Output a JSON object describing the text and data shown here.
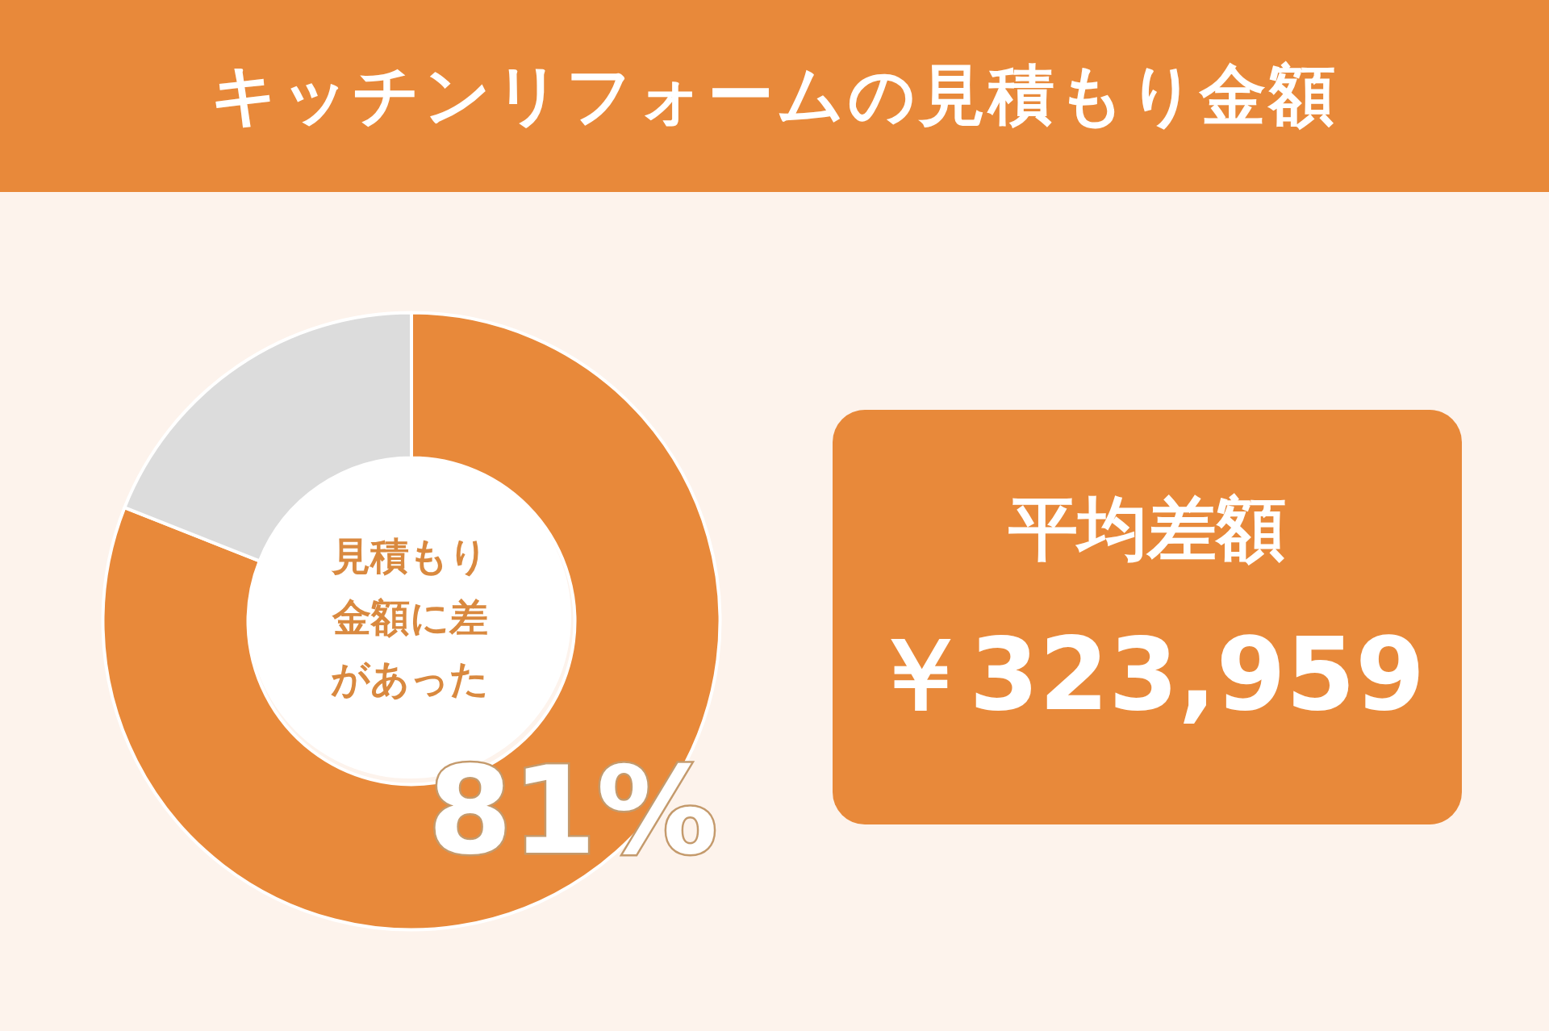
{
  "chart_data": [
    {
      "type": "donut",
      "title": "キッチンリフォームの見積もり金額",
      "categories": [
        null,
        null
      ],
      "annotations": [
        "見積もり金額に差があった"
      ],
      "values": [
        81,
        19
      ],
      "colors": [
        "#e8893a",
        "#dcdcdc"
      ],
      "value_labels": [
        "81%",
        null
      ]
    },
    {
      "type": "other",
      "title": "平均差額",
      "annotations": [
        "￥323,959"
      ]
    }
  ]
}
